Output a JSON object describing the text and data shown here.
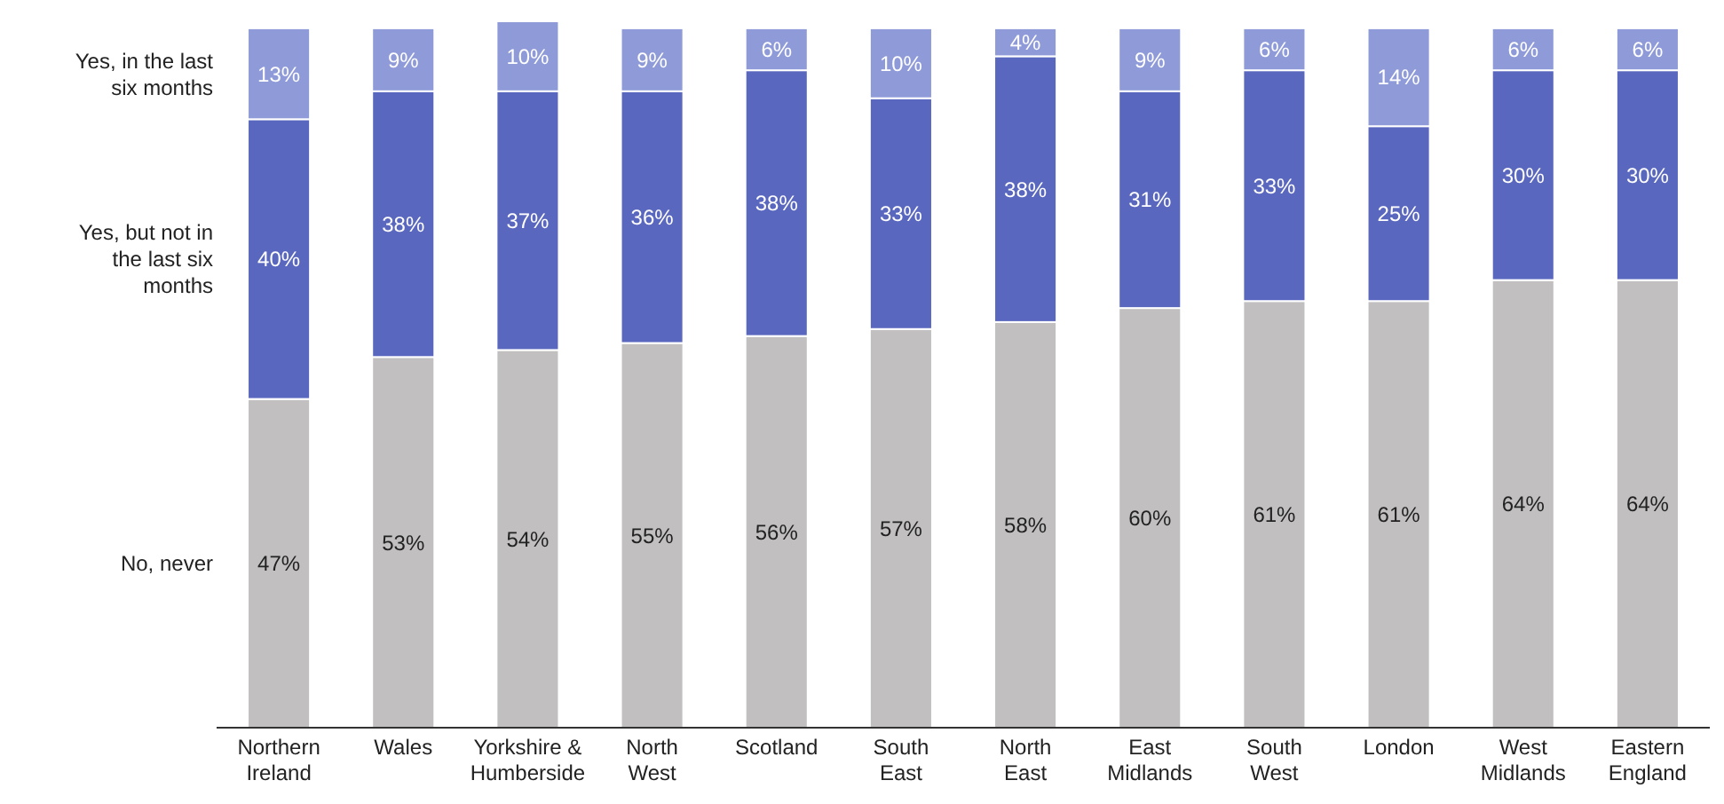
{
  "chart_data": {
    "type": "bar",
    "stacked": true,
    "legend": "left",
    "categories": [
      "Northern Ireland",
      "Wales",
      "Yorkshire & Humberside",
      "North West",
      "Scotland",
      "South East",
      "North East",
      "East Midlands",
      "South West",
      "London",
      "West Midlands",
      "Eastern England"
    ],
    "series": [
      {
        "name": "No, never",
        "color": "#c1bfbf",
        "values": [
          47,
          53,
          54,
          55,
          56,
          57,
          58,
          60,
          61,
          61,
          64,
          64
        ],
        "value_labels": [
          "47%",
          "53%",
          "54%",
          "55%",
          "56%",
          "57%",
          "58%",
          "60%",
          "61%",
          "61%",
          "64%",
          "64%"
        ]
      },
      {
        "name": "Yes, but not in the last six months",
        "color": "#5a67be",
        "values": [
          40,
          38,
          37,
          36,
          38,
          33,
          38,
          31,
          33,
          25,
          30,
          30
        ],
        "value_labels": [
          "40%",
          "38%",
          "37%",
          "36%",
          "38%",
          "33%",
          "38%",
          "31%",
          "33%",
          "25%",
          "30%",
          "30%"
        ]
      },
      {
        "name": "Yes, in the last six months",
        "color": "#8f9ad8",
        "values": [
          13,
          9,
          10,
          9,
          6,
          10,
          4,
          9,
          6,
          14,
          6,
          6
        ],
        "value_labels": [
          "13%",
          "9%",
          "10%",
          "9%",
          "6%",
          "10%",
          "4%",
          "9%",
          "6%",
          "14%",
          "6%",
          "6%"
        ]
      }
    ]
  }
}
